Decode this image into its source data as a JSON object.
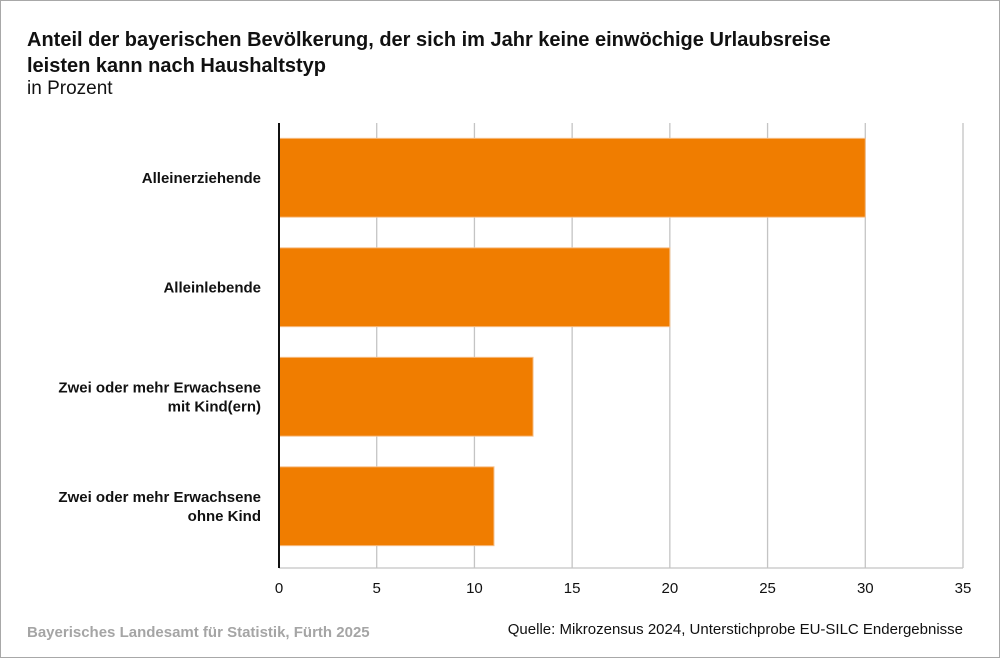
{
  "chart_data": {
    "type": "bar",
    "orientation": "horizontal",
    "title": "Anteil der bayerischen Bevölkerung, der sich im Jahr keine einwöchige Urlaubsreise leisten kann nach Haushaltstyp",
    "subtitle": "in Prozent",
    "categories": [
      [
        "Alleinerziehende"
      ],
      [
        "Alleinlebende"
      ],
      [
        "Zwei oder mehr Erwachsene",
        "mit Kind(ern)"
      ],
      [
        "Zwei oder mehr Erwachsene",
        "ohne Kind"
      ]
    ],
    "values": [
      30,
      20,
      13,
      11
    ],
    "xlabel": "",
    "ylabel": "",
    "xlim": [
      0,
      35
    ],
    "xticks": [
      0,
      5,
      10,
      15,
      20,
      25,
      30,
      35
    ],
    "grid": true,
    "legend": "none",
    "bar_color": "#f07d00"
  },
  "title_line1": "Anteil der bayerischen Bevölkerung, der sich im Jahr keine einwöchige Urlaubsreise",
  "title_line2": "leisten kann nach Haushaltstyp",
  "subtitle": "in Prozent",
  "footer": {
    "publisher": "Bayerisches Landesamt für Statistik, Fürth 2025",
    "source": "Quelle: Mikrozensus 2024, Unterstichprobe EU-SILC Endergebnisse"
  }
}
